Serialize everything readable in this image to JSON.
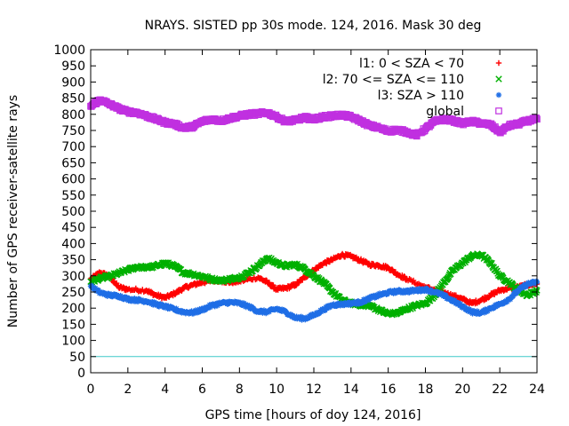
{
  "chart_data": {
    "type": "scatter",
    "title": "NRAYS. SISTED pp 30s mode. 124, 2016. Mask 30 deg",
    "xlabel": "GPS time [hours of doy 124, 2016]",
    "ylabel": "Number of GPS receiver-satellite rays",
    "xlim": [
      0,
      24
    ],
    "ylim": [
      0,
      1000
    ],
    "x_ticks": [
      "0",
      "2",
      "4",
      "6",
      "8",
      "10",
      "12",
      "14",
      "16",
      "18",
      "20",
      "22",
      "24"
    ],
    "y_ticks": [
      "0",
      "50",
      "100",
      "150",
      "200",
      "250",
      "300",
      "350",
      "400",
      "450",
      "500",
      "550",
      "600",
      "650",
      "700",
      "750",
      "800",
      "850",
      "900",
      "950",
      "1000"
    ],
    "reference_line": {
      "y": 50,
      "color": "#3fc8c8"
    },
    "legend_position": "top-right",
    "series": [
      {
        "name": "l1: 0 < SZA < 70",
        "symbol": "+",
        "color": "#ff0000",
        "points": [
          [
            0,
            290
          ],
          [
            0.5,
            310
          ],
          [
            1,
            300
          ],
          [
            1.5,
            265
          ],
          [
            2,
            258
          ],
          [
            3,
            255
          ],
          [
            3.5,
            240
          ],
          [
            4,
            232
          ],
          [
            4.5,
            245
          ],
          [
            5,
            262
          ],
          [
            5.5,
            272
          ],
          [
            6,
            280
          ],
          [
            7,
            285
          ],
          [
            7.5,
            280
          ],
          [
            8,
            283
          ],
          [
            9,
            295
          ],
          [
            9.5,
            280
          ],
          [
            10,
            258
          ],
          [
            10.5,
            262
          ],
          [
            11,
            272
          ],
          [
            11.5,
            295
          ],
          [
            12,
            318
          ],
          [
            12.5,
            338
          ],
          [
            13,
            350
          ],
          [
            13.5,
            365
          ],
          [
            14,
            360
          ],
          [
            14.5,
            348
          ],
          [
            15,
            335
          ],
          [
            15.5,
            332
          ],
          [
            16,
            325
          ],
          [
            16.5,
            305
          ],
          [
            17,
            290
          ],
          [
            18,
            265
          ],
          [
            18.5,
            255
          ],
          [
            19,
            248
          ],
          [
            19.5,
            238
          ],
          [
            20,
            228
          ],
          [
            20.5,
            215
          ],
          [
            21,
            225
          ],
          [
            21.5,
            240
          ],
          [
            22,
            255
          ],
          [
            22.5,
            262
          ],
          [
            23,
            265
          ],
          [
            23.5,
            272
          ],
          [
            24,
            275
          ]
        ]
      },
      {
        "name": "l2: 70 <= SZA <= 110",
        "symbol": "x",
        "color": "#00b000",
        "points": [
          [
            0,
            282
          ],
          [
            0.5,
            292
          ],
          [
            1,
            298
          ],
          [
            1.5,
            308
          ],
          [
            2,
            318
          ],
          [
            2.5,
            328
          ],
          [
            3,
            325
          ],
          [
            3.5,
            330
          ],
          [
            4,
            340
          ],
          [
            4.5,
            330
          ],
          [
            5,
            310
          ],
          [
            5.5,
            305
          ],
          [
            6,
            298
          ],
          [
            6.5,
            290
          ],
          [
            7,
            285
          ],
          [
            7.5,
            290
          ],
          [
            8,
            295
          ],
          [
            8.5,
            310
          ],
          [
            9,
            330
          ],
          [
            9.5,
            355
          ],
          [
            10,
            340
          ],
          [
            10.5,
            330
          ],
          [
            11,
            335
          ],
          [
            11.5,
            322
          ],
          [
            12,
            300
          ],
          [
            12.5,
            280
          ],
          [
            13,
            250
          ],
          [
            13.5,
            225
          ],
          [
            14,
            215
          ],
          [
            14.5,
            210
          ],
          [
            15,
            208
          ],
          [
            15.5,
            195
          ],
          [
            16,
            182
          ],
          [
            16.5,
            185
          ],
          [
            17,
            198
          ],
          [
            17.5,
            208
          ],
          [
            18,
            215
          ],
          [
            18.5,
            240
          ],
          [
            19,
            280
          ],
          [
            19.5,
            318
          ],
          [
            20,
            340
          ],
          [
            20.5,
            362
          ],
          [
            21,
            365
          ],
          [
            21.5,
            340
          ],
          [
            22,
            300
          ],
          [
            22.5,
            280
          ],
          [
            23,
            255
          ],
          [
            23.5,
            240
          ],
          [
            24,
            255
          ]
        ]
      },
      {
        "name": "l3: SZA > 110",
        "symbol": "*",
        "color": "#1f6ee6",
        "points": [
          [
            0,
            268
          ],
          [
            0.5,
            248
          ],
          [
            1,
            240
          ],
          [
            1.5,
            238
          ],
          [
            2,
            228
          ],
          [
            2.5,
            225
          ],
          [
            3,
            222
          ],
          [
            3.5,
            212
          ],
          [
            4,
            205
          ],
          [
            4.5,
            196
          ],
          [
            5,
            188
          ],
          [
            5.5,
            186
          ],
          [
            6,
            195
          ],
          [
            6.5,
            208
          ],
          [
            7,
            215
          ],
          [
            7.5,
            218
          ],
          [
            8,
            215
          ],
          [
            8.5,
            205
          ],
          [
            9,
            190
          ],
          [
            9.5,
            188
          ],
          [
            10,
            198
          ],
          [
            10.5,
            188
          ],
          [
            11,
            170
          ],
          [
            11.5,
            168
          ],
          [
            12,
            178
          ],
          [
            12.5,
            195
          ],
          [
            13,
            210
          ],
          [
            13.5,
            212
          ],
          [
            14,
            215
          ],
          [
            14.5,
            218
          ],
          [
            15,
            230
          ],
          [
            15.5,
            240
          ],
          [
            16,
            248
          ],
          [
            16.5,
            252
          ],
          [
            17,
            252
          ],
          [
            17.5,
            255
          ],
          [
            18,
            258
          ],
          [
            18.5,
            250
          ],
          [
            19,
            238
          ],
          [
            19.5,
            222
          ],
          [
            20,
            205
          ],
          [
            20.5,
            188
          ],
          [
            21,
            185
          ],
          [
            21.5,
            200
          ],
          [
            22,
            212
          ],
          [
            22.5,
            228
          ],
          [
            23,
            255
          ],
          [
            23.5,
            275
          ],
          [
            24,
            280
          ]
        ]
      },
      {
        "name": "global",
        "symbol": "square",
        "color": "#c030e0",
        "points": [
          [
            0,
            825
          ],
          [
            0.5,
            845
          ],
          [
            1,
            832
          ],
          [
            1.5,
            818
          ],
          [
            2,
            808
          ],
          [
            2.5,
            805
          ],
          [
            3,
            795
          ],
          [
            3.5,
            785
          ],
          [
            4,
            775
          ],
          [
            4.5,
            770
          ],
          [
            5,
            758
          ],
          [
            5.5,
            762
          ],
          [
            6,
            778
          ],
          [
            6.5,
            785
          ],
          [
            7,
            780
          ],
          [
            7.5,
            788
          ],
          [
            8,
            795
          ],
          [
            8.5,
            800
          ],
          [
            9,
            802
          ],
          [
            9.5,
            805
          ],
          [
            10,
            792
          ],
          [
            10.5,
            778
          ],
          [
            11,
            782
          ],
          [
            11.5,
            790
          ],
          [
            12,
            785
          ],
          [
            12.5,
            792
          ],
          [
            13,
            795
          ],
          [
            13.5,
            798
          ],
          [
            14,
            792
          ],
          [
            14.5,
            780
          ],
          [
            15,
            765
          ],
          [
            15.5,
            758
          ],
          [
            16,
            748
          ],
          [
            16.5,
            752
          ],
          [
            17,
            745
          ],
          [
            17.5,
            735
          ],
          [
            18,
            755
          ],
          [
            18.5,
            778
          ],
          [
            19,
            785
          ],
          [
            19.5,
            780
          ],
          [
            20,
            772
          ],
          [
            20.5,
            778
          ],
          [
            21,
            772
          ],
          [
            21.5,
            768
          ],
          [
            22,
            745
          ],
          [
            22.5,
            765
          ],
          [
            23,
            770
          ],
          [
            23.5,
            780
          ],
          [
            24,
            785
          ]
        ]
      }
    ]
  }
}
